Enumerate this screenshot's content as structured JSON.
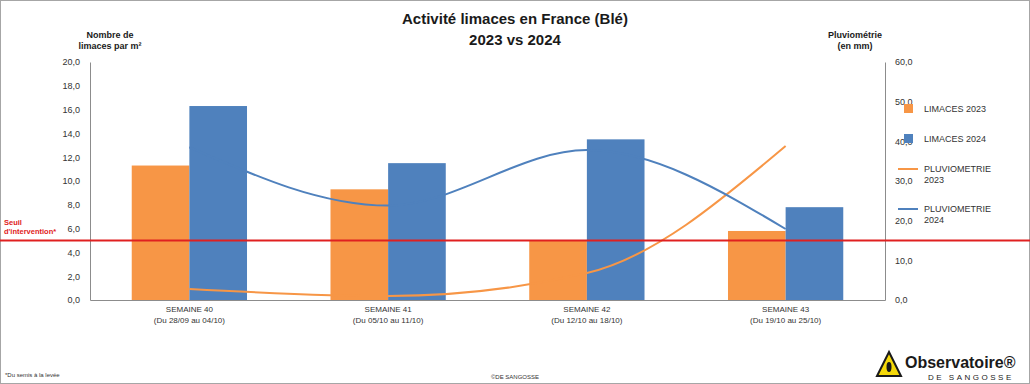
{
  "chart_data": {
    "type": "bar",
    "title": "Activité limaces en France (Blé)",
    "subtitle": "2023 vs 2024",
    "ylabel": "Nombre de\nlimaces par m²",
    "y2label": "Pluviométrie\n(en mm)",
    "categories": [
      "SEMAINE 40\n(Du 28/09 au 04/10)",
      "SEMAINE 41\n(Du 05/10 au 11/10)",
      "SEMAINE 42\n(Du 12/10 au 18/10)",
      "SEMAINE 43\n(Du 19/10 au 25/10)"
    ],
    "series": [
      {
        "name": "LIMACES 2023",
        "type": "bar",
        "color": "#f79646",
        "values": [
          11.3,
          9.3,
          5.0,
          5.8
        ]
      },
      {
        "name": "LIMACES 2024",
        "type": "bar",
        "color": "#4f81bd",
        "values": [
          16.3,
          11.5,
          13.5,
          7.8
        ]
      },
      {
        "name": "PLUVIOMETRIE 2023",
        "type": "line",
        "color": "#f79646",
        "axis": "y2",
        "values": [
          2.8,
          1.0,
          6.8,
          38.8
        ]
      },
      {
        "name": "PLUVIOMETRIE 2024",
        "type": "line",
        "color": "#4f81bd",
        "axis": "y2",
        "values": [
          38.5,
          23.8,
          37.8,
          17.9
        ]
      }
    ],
    "ylim": [
      0,
      20
    ],
    "yticks": [
      {
        "value": 0,
        "label": "0,0"
      },
      {
        "value": 2,
        "label": "2,0"
      },
      {
        "value": 4,
        "label": "4,0"
      },
      {
        "value": 6,
        "label": "6,0"
      },
      {
        "value": 8,
        "label": "8,0"
      },
      {
        "value": 10,
        "label": "10,0"
      },
      {
        "value": 12,
        "label": "12,0"
      },
      {
        "value": 14,
        "label": "14,0"
      },
      {
        "value": 16,
        "label": "16,0"
      },
      {
        "value": 18,
        "label": "18,0"
      },
      {
        "value": 20,
        "label": "20,0"
      }
    ],
    "y2lim": [
      0,
      60
    ],
    "y2ticks": [
      {
        "value": 0,
        "label": "0,0"
      },
      {
        "value": 10,
        "label": "10,0"
      },
      {
        "value": 20,
        "label": "20,0"
      },
      {
        "value": 30,
        "label": "30,0"
      },
      {
        "value": 40,
        "label": "40,0"
      },
      {
        "value": 50,
        "label": "50,0"
      },
      {
        "value": 60,
        "label": "60,0"
      }
    ],
    "grid": false,
    "legend": "right",
    "threshold": {
      "label": "Seuil\nd'intervention*",
      "value": 5,
      "color": "#e02020"
    },
    "footnote": "*Du semis à la levée",
    "credit": "©DE SANGOSSE",
    "logo": {
      "title": "Observatoire®",
      "subtitle": "DE SANGOSSE"
    }
  }
}
